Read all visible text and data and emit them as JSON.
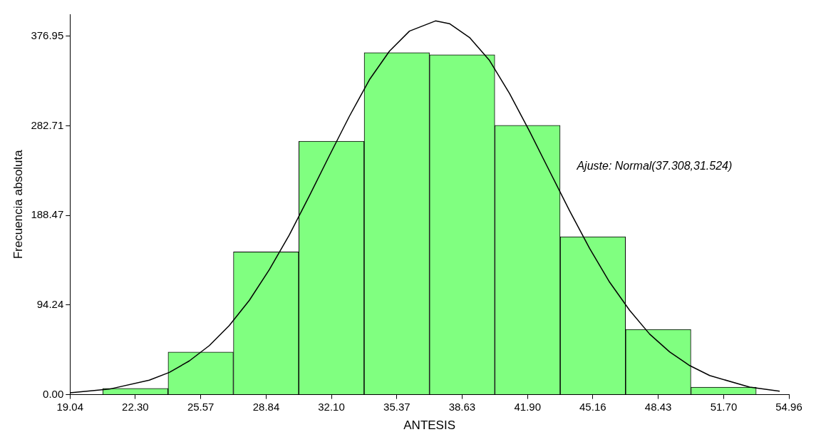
{
  "chart_data": {
    "type": "histogram",
    "xlabel": "ANTESIS",
    "ylabel": "Frecuencia absoluta",
    "annotations": [
      "Ajuste: Normal(37.308,31.524)"
    ],
    "bins": [
      20.67,
      23.936,
      27.202,
      30.468,
      33.734,
      37.0,
      40.266,
      43.532,
      46.798,
      50.064,
      53.33
    ],
    "values": [
      6.5,
      44.8,
      150.2,
      266.5,
      359.6,
      357.4,
      283.1,
      166.1,
      68.6,
      7.9
    ],
    "color": "#80ff80",
    "series": [
      {
        "type": "line",
        "color": "#000000",
        "x": [
          19.04,
          21,
          23,
          24,
          25,
          26,
          27,
          28,
          29,
          30,
          31,
          32,
          33,
          34,
          35,
          36,
          37.3,
          38,
          39,
          40,
          41,
          42,
          43,
          44,
          45,
          46,
          47,
          48,
          49,
          50,
          51,
          53,
          54.5
        ],
        "values": [
          2.0,
          5.8,
          15.3,
          23.4,
          35.5,
          51.6,
          72.8,
          99.2,
          131.5,
          168.1,
          209.1,
          251.4,
          292.8,
          331.2,
          361.2,
          382.3,
          393,
          390.1,
          375.6,
          351.4,
          316.7,
          276.9,
          235.1,
          193.4,
          153.8,
          118.3,
          88.7,
          63.7,
          45.0,
          30.6,
          20.1,
          7.9,
          3.6
        ]
      }
    ],
    "xlim": [
      19.04,
      54.96
    ],
    "xticks": [
      19.04,
      {
        "value": 22.3,
        "label": "22.30"
      },
      25.57,
      28.84,
      {
        "value": 32.1,
        "label": "32.10"
      },
      35.37,
      38.63,
      {
        "value": 41.9,
        "label": "41.90"
      },
      45.16,
      48.43,
      {
        "value": 51.7,
        "label": "51.70"
      },
      54.96
    ],
    "ylim": [
      0,
      400
    ],
    "yticks": [
      {
        "value": 0,
        "label": "0.00"
      },
      94.24,
      188.47,
      282.71,
      376.95
    ],
    "grid": false,
    "legend": false
  }
}
